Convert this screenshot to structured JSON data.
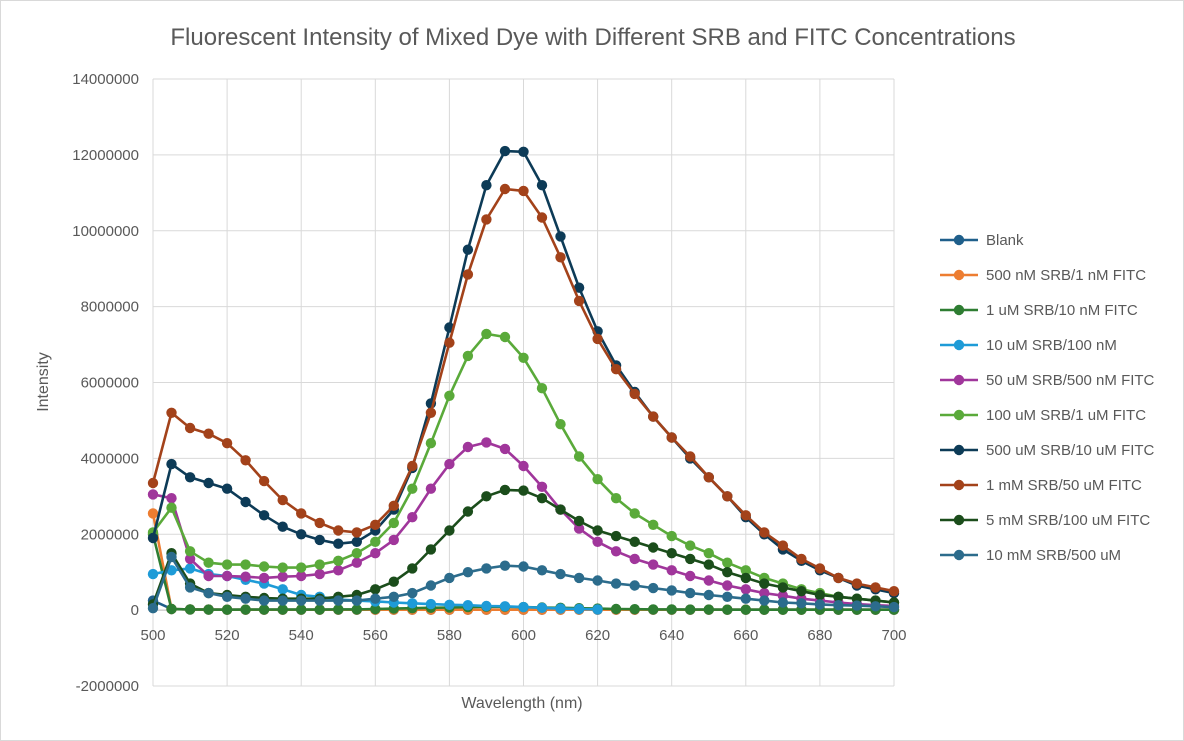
{
  "chart_data": {
    "type": "line",
    "title": "Fluorescent Intensity of Mixed Dye with Different SRB and FITC Concentrations",
    "xlabel": "Wavelength (nm)",
    "ylabel": "Intensity",
    "xlim": [
      500,
      700
    ],
    "ylim": [
      -2000000,
      14000000
    ],
    "x_ticks": [
      500,
      520,
      540,
      560,
      580,
      600,
      620,
      640,
      660,
      680,
      700
    ],
    "y_ticks": [
      -2000000,
      0,
      2000000,
      4000000,
      6000000,
      8000000,
      10000000,
      12000000,
      14000000
    ],
    "grid": true,
    "legend_position": "right",
    "x": [
      500,
      505,
      510,
      515,
      520,
      525,
      530,
      535,
      540,
      545,
      550,
      555,
      560,
      565,
      570,
      575,
      580,
      585,
      590,
      595,
      600,
      605,
      610,
      615,
      620,
      625,
      630,
      635,
      640,
      645,
      650,
      655,
      660,
      665,
      670,
      675,
      680,
      685,
      690,
      695,
      700
    ],
    "series": [
      {
        "name": "Blank",
        "color": "#1f5f8b",
        "values": [
          250000,
          30000,
          20000,
          15000,
          12000,
          10000,
          10000,
          10000,
          10000,
          10000,
          10000,
          10000,
          10000,
          10000,
          10000,
          10000,
          10000,
          10000,
          10000,
          10000,
          10000,
          10000,
          10000,
          10000,
          10000,
          10000,
          10000,
          10000,
          10000,
          10000,
          10000,
          10000,
          10000,
          10000,
          10000,
          10000,
          10000,
          10000,
          10000,
          10000,
          10000
        ]
      },
      {
        "name": "500 nM SRB/1 nM FITC",
        "color": "#ed7d31",
        "values": [
          2550000,
          30000,
          20000,
          15000,
          12000,
          10000,
          10000,
          10000,
          10000,
          10000,
          10000,
          10000,
          10000,
          10000,
          10000,
          10000,
          10000,
          10000,
          10000,
          10000,
          10000,
          10000,
          10000,
          10000,
          10000,
          10000,
          10000,
          10000,
          10000,
          10000,
          10000,
          10000,
          10000,
          10000,
          10000,
          10000,
          10000,
          10000,
          10000,
          10000,
          10000
        ]
      },
      {
        "name": "1 uM SRB/10 nM FITC",
        "color": "#2e7d32",
        "values": [
          2000000,
          30000,
          20000,
          15000,
          12000,
          15000,
          15000,
          15000,
          15000,
          15000,
          20000,
          20000,
          30000,
          40000,
          50000,
          60000,
          70000,
          80000,
          90000,
          90000,
          80000,
          70000,
          60000,
          50000,
          40000,
          30000,
          25000,
          20000,
          20000,
          15000,
          15000,
          10000,
          10000,
          10000,
          10000,
          10000,
          10000,
          10000,
          10000,
          10000,
          10000
        ]
      },
      {
        "name": "10 uM SRB/100 nM",
        "color": "#1e9bd7",
        "values": [
          950000,
          1050000,
          1100000,
          950000,
          900000,
          800000,
          700000,
          550000,
          400000,
          350000,
          280000,
          250000,
          230000,
          200000,
          180000,
          160000,
          140000,
          130000,
          110000,
          100000,
          80000,
          60000,
          40000,
          30000,
          20000,
          null,
          null,
          null,
          null,
          null,
          null,
          null,
          null,
          null,
          null,
          null,
          null,
          null,
          null,
          null,
          null
        ]
      },
      {
        "name": "50 uM SRB/500 nM FITC",
        "color": "#a0369b",
        "values": [
          3050000,
          2950000,
          1350000,
          900000,
          900000,
          880000,
          850000,
          880000,
          900000,
          950000,
          1050000,
          1250000,
          1500000,
          1850000,
          2450000,
          3200000,
          3850000,
          4300000,
          4420000,
          4250000,
          3800000,
          3250000,
          2650000,
          2150000,
          1800000,
          1550000,
          1350000,
          1200000,
          1050000,
          900000,
          780000,
          650000,
          550000,
          450000,
          380000,
          300000,
          250000,
          200000,
          160000,
          130000,
          110000
        ]
      },
      {
        "name": "100 uM SRB/1 uM FITC",
        "color": "#5aaa3a",
        "values": [
          2050000,
          2700000,
          1550000,
          1250000,
          1200000,
          1200000,
          1150000,
          1120000,
          1120000,
          1200000,
          1300000,
          1500000,
          1800000,
          2300000,
          3200000,
          4400000,
          5650000,
          6700000,
          7280000,
          7200000,
          6650000,
          5850000,
          4900000,
          4050000,
          3450000,
          2950000,
          2550000,
          2250000,
          1950000,
          1700000,
          1500000,
          1250000,
          1050000,
          850000,
          700000,
          550000,
          450000,
          350000,
          300000,
          250000,
          200000
        ]
      },
      {
        "name": "500 uM SRB/10 uM FITC",
        "color": "#0d3b57",
        "values": [
          1900000,
          3850000,
          3500000,
          3350000,
          3200000,
          2850000,
          2500000,
          2200000,
          2000000,
          1850000,
          1750000,
          1800000,
          2100000,
          2650000,
          3750000,
          5450000,
          7450000,
          9500000,
          11200000,
          12100000,
          12080000,
          11200000,
          9850000,
          8500000,
          7350000,
          6450000,
          5750000,
          5100000,
          4550000,
          4000000,
          3500000,
          3000000,
          2450000,
          2000000,
          1600000,
          1300000,
          1050000,
          850000,
          650000,
          550000,
          450000
        ]
      },
      {
        "name": "1 mM SRB/50 uM FITC",
        "color": "#a3421a",
        "values": [
          3350000,
          5200000,
          4800000,
          4650000,
          4400000,
          3950000,
          3400000,
          2900000,
          2550000,
          2300000,
          2100000,
          2050000,
          2250000,
          2750000,
          3800000,
          5200000,
          7050000,
          8850000,
          10300000,
          11100000,
          11050000,
          10350000,
          9300000,
          8150000,
          7150000,
          6350000,
          5700000,
          5100000,
          4550000,
          4050000,
          3500000,
          3000000,
          2500000,
          2050000,
          1700000,
          1350000,
          1100000,
          850000,
          700000,
          600000,
          500000
        ]
      },
      {
        "name": "5 mM SRB/100 uM FITC",
        "color": "#1b4d1b",
        "values": [
          150000,
          1500000,
          700000,
          450000,
          400000,
          350000,
          320000,
          300000,
          300000,
          300000,
          350000,
          400000,
          550000,
          750000,
          1100000,
          1600000,
          2100000,
          2600000,
          3000000,
          3170000,
          3150000,
          2950000,
          2650000,
          2350000,
          2100000,
          1950000,
          1800000,
          1650000,
          1500000,
          1350000,
          1200000,
          1000000,
          850000,
          700000,
          600000,
          500000,
          400000,
          350000,
          300000,
          250000,
          200000
        ]
      },
      {
        "name": "10 mM SRB/500 uM",
        "color": "#2c6c8c",
        "values": [
          50000,
          1400000,
          600000,
          450000,
          350000,
          300000,
          250000,
          250000,
          250000,
          250000,
          250000,
          250000,
          300000,
          350000,
          450000,
          650000,
          850000,
          1000000,
          1100000,
          1170000,
          1150000,
          1050000,
          950000,
          850000,
          780000,
          700000,
          650000,
          580000,
          520000,
          450000,
          400000,
          350000,
          300000,
          250000,
          200000,
          180000,
          150000,
          130000,
          120000,
          100000,
          80000
        ]
      }
    ]
  }
}
